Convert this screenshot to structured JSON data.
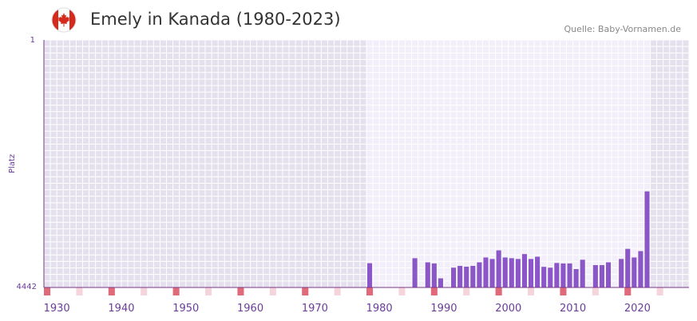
{
  "header": {
    "title": "Emely in Kanada (1980-2023)",
    "source": "Quelle: Baby-Vornamen.de",
    "flag_icon": "canada-flag-icon"
  },
  "colors": {
    "bar": "#8a56c8",
    "bg_outside": "#e4e0ee",
    "bg_inside": "#f2effa",
    "grid": "#ffffff",
    "axis": "#7a3a8a",
    "tick_red": "#e06a7a",
    "tick_pink": "#f6d4dc",
    "flag_red": "#d52b1e"
  },
  "chart_data": {
    "type": "bar",
    "title": "Emely in Kanada (1980-2023)",
    "xlabel": "",
    "ylabel": "Platz",
    "ylim": [
      4442,
      1
    ],
    "y_ticks": [
      "1",
      "4442"
    ],
    "x_range": [
      1928,
      2028
    ],
    "highlight_range": [
      1978,
      2022
    ],
    "x_ticks": [
      1930,
      1940,
      1950,
      1960,
      1970,
      1980,
      1990,
      2000,
      2010,
      2020
    ],
    "x_tick_labels": [
      "1930",
      "1940",
      "1950",
      "1960",
      "1970",
      "1980",
      "1990",
      "2000",
      "2010",
      "2020"
    ],
    "years": [
      1978,
      1985,
      1987,
      1988,
      1989,
      1991,
      1992,
      1993,
      1994,
      1995,
      1996,
      1997,
      1998,
      1999,
      2000,
      2001,
      2002,
      2003,
      2004,
      2005,
      2006,
      2007,
      2008,
      2009,
      2010,
      2011,
      2013,
      2014,
      2015,
      2017,
      2018,
      2019,
      2020,
      2021
    ],
    "values": [
      4007,
      3917,
      3991,
      4011,
      4278,
      4087,
      4055,
      4069,
      4055,
      3991,
      3904,
      3931,
      3776,
      3904,
      3917,
      3931,
      3843,
      3931,
      3890,
      4072,
      4087,
      4003,
      4011,
      4011,
      4112,
      3945,
      4041,
      4041,
      3991,
      3931,
      3749,
      3904,
      3790,
      2718
    ]
  }
}
